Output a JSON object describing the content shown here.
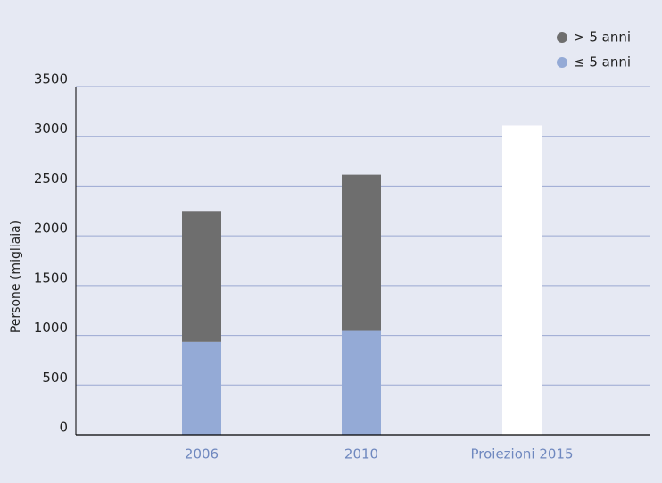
{
  "chart_data": {
    "type": "stacked-bar",
    "y_label": "Persone (migliaia)",
    "categories": [
      "2006",
      "2010",
      "Proiezioni 2015"
    ],
    "series": [
      {
        "name": "≤ 5 anni",
        "color": "#94aad6",
        "values": [
          935,
          1045,
          null
        ]
      },
      {
        "name": "> 5 anni",
        "color": "#6e6e6e",
        "values": [
          1315,
          1570,
          null
        ]
      },
      {
        "color": "#ffffff",
        "values": [
          null,
          null,
          3110
        ]
      }
    ],
    "ylim": [
      0,
      3500
    ],
    "yticks": [
      0,
      500,
      1000,
      1500,
      2000,
      2500,
      3000,
      3500
    ],
    "grid": true
  }
}
